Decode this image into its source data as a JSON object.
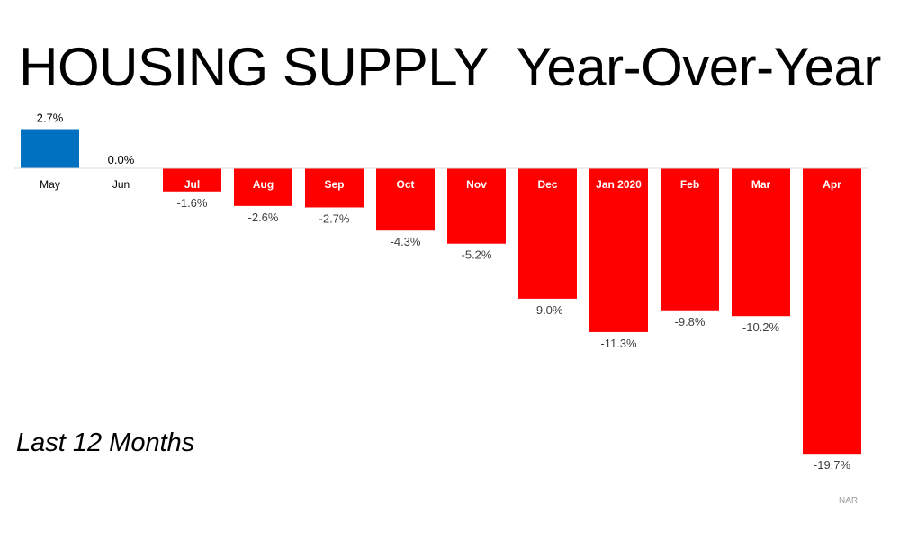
{
  "title": "HOUSING SUPPLY  Year-Over-Year",
  "subtitle": "Last 12 Months",
  "source": "NAR",
  "colors": {
    "positive": "#0070C0",
    "negative": "#FF0000",
    "label_on_bar": "#FFFFFF",
    "label_off_bar": "#000000",
    "value_label": "#404040",
    "axis": "#D9D9D9"
  },
  "chart_data": {
    "type": "bar",
    "title": "HOUSING SUPPLY  Year-Over-Year",
    "subtitle": "Last 12 Months",
    "categories": [
      "May",
      "Jun",
      "Jul",
      "Aug",
      "Sep",
      "Oct",
      "Nov",
      "Dec",
      "Jan 2020",
      "Feb",
      "Mar",
      "Apr"
    ],
    "values": [
      2.7,
      0.0,
      -1.6,
      -2.6,
      -2.7,
      -4.3,
      -5.2,
      -9.0,
      -11.3,
      -9.8,
      -10.2,
      -19.7
    ],
    "value_labels": [
      "2.7%",
      "0.0%",
      "-1.6%",
      "-2.6%",
      "-2.7%",
      "-4.3%",
      "-5.2%",
      "-9.0%",
      "-11.3%",
      "-9.8%",
      "-10.2%",
      "-19.7%"
    ],
    "ylim": [
      -20,
      3
    ],
    "grid": false,
    "legend": "none"
  }
}
